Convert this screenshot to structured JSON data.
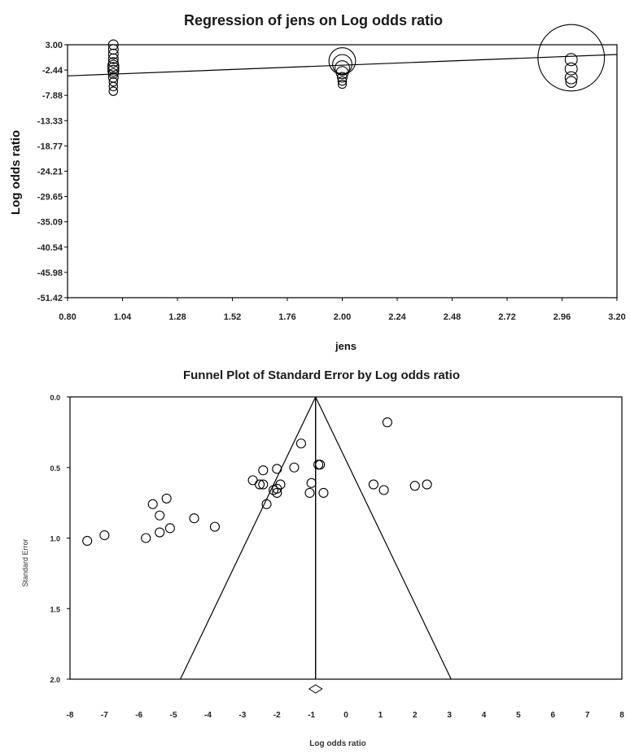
{
  "chart_data": [
    {
      "type": "scatter",
      "title": "Regression of jens on Log odds ratio",
      "xlabel": "jens",
      "ylabel": "Log odds ratio",
      "xlim": [
        0.8,
        3.2
      ],
      "ylim": [
        -51.42,
        3.0
      ],
      "x_ticks": [
        "0.80",
        "1.04",
        "1.28",
        "1.52",
        "1.76",
        "2.00",
        "2.24",
        "2.48",
        "2.72",
        "2.96",
        "3.20"
      ],
      "y_ticks": [
        "3.00",
        "-2.44",
        "-7.88",
        "-13.33",
        "-18.77",
        "-24.21",
        "-29.65",
        "-35.09",
        "-40.54",
        "-45.98",
        "-51.42"
      ],
      "regression_line": {
        "x": [
          0.8,
          3.2
        ],
        "y": [
          -3.7,
          0.9
        ]
      },
      "points": [
        {
          "x": 1.0,
          "y": 3.0,
          "r": 0.8
        },
        {
          "x": 1.0,
          "y": 2.0,
          "r": 0.8
        },
        {
          "x": 1.0,
          "y": 1.0,
          "r": 0.8
        },
        {
          "x": 1.0,
          "y": 0.0,
          "r": 0.8
        },
        {
          "x": 1.0,
          "y": -0.8,
          "r": 0.8
        },
        {
          "x": 1.0,
          "y": -1.5,
          "r": 0.9
        },
        {
          "x": 1.0,
          "y": -2.0,
          "r": 0.9
        },
        {
          "x": 1.0,
          "y": -2.6,
          "r": 0.9
        },
        {
          "x": 1.0,
          "y": -3.2,
          "r": 0.8
        },
        {
          "x": 1.0,
          "y": -4.0,
          "r": 0.8
        },
        {
          "x": 1.0,
          "y": -5.0,
          "r": 0.7
        },
        {
          "x": 1.0,
          "y": -6.0,
          "r": 0.7
        },
        {
          "x": 1.0,
          "y": -7.0,
          "r": 0.7
        },
        {
          "x": 2.0,
          "y": -0.5,
          "r": 2.2
        },
        {
          "x": 2.0,
          "y": -1.2,
          "r": 1.6
        },
        {
          "x": 2.0,
          "y": -2.0,
          "r": 1.2
        },
        {
          "x": 2.0,
          "y": -3.0,
          "r": 1.0
        },
        {
          "x": 2.0,
          "y": -4.0,
          "r": 0.8
        },
        {
          "x": 2.0,
          "y": -4.8,
          "r": 0.7
        },
        {
          "x": 2.0,
          "y": -5.5,
          "r": 0.6
        },
        {
          "x": 3.0,
          "y": 0.2,
          "r": 5.5
        },
        {
          "x": 3.0,
          "y": -0.2,
          "r": 1.0
        },
        {
          "x": 3.0,
          "y": -2.2,
          "r": 1.0
        },
        {
          "x": 3.0,
          "y": -4.1,
          "r": 1.0
        },
        {
          "x": 3.0,
          "y": -5.0,
          "r": 0.9
        }
      ]
    },
    {
      "type": "scatter",
      "title": "Funnel Plot of Standard Error by Log odds ratio",
      "xlabel": "Log odds ratio",
      "ylabel": "Standard Error",
      "xlim": [
        -8,
        8
      ],
      "ylim": [
        0.0,
        2.0
      ],
      "y_inverted": true,
      "x_ticks": [
        "-8",
        "-7",
        "-6",
        "-5",
        "-4",
        "-3",
        "-2",
        "-1",
        "0",
        "1",
        "2",
        "3",
        "4",
        "5",
        "6",
        "7",
        "8"
      ],
      "y_ticks": [
        "0.0",
        "0.5",
        "1.0",
        "1.5",
        "2.0"
      ],
      "summary_effect": -0.88,
      "funnel_bottom": [
        -4.8,
        3.05
      ],
      "points": [
        {
          "x": 1.2,
          "y": 0.18
        },
        {
          "x": -1.3,
          "y": 0.33
        },
        {
          "x": -0.8,
          "y": 0.48
        },
        {
          "x": -0.75,
          "y": 0.48
        },
        {
          "x": -1.5,
          "y": 0.5
        },
        {
          "x": -2.0,
          "y": 0.51
        },
        {
          "x": -2.4,
          "y": 0.52
        },
        {
          "x": -2.7,
          "y": 0.59
        },
        {
          "x": -2.5,
          "y": 0.62
        },
        {
          "x": -2.4,
          "y": 0.62
        },
        {
          "x": -1.9,
          "y": 0.62
        },
        {
          "x": -2.0,
          "y": 0.65
        },
        {
          "x": -2.1,
          "y": 0.66
        },
        {
          "x": -2.0,
          "y": 0.68
        },
        {
          "x": -2.3,
          "y": 0.76
        },
        {
          "x": -1.0,
          "y": 0.61
        },
        {
          "x": -1.05,
          "y": 0.68
        },
        {
          "x": -0.65,
          "y": 0.68
        },
        {
          "x": 0.8,
          "y": 0.62
        },
        {
          "x": 1.1,
          "y": 0.66
        },
        {
          "x": 2.0,
          "y": 0.63
        },
        {
          "x": 2.35,
          "y": 0.62
        },
        {
          "x": -5.2,
          "y": 0.72
        },
        {
          "x": -5.6,
          "y": 0.76
        },
        {
          "x": -5.4,
          "y": 0.84
        },
        {
          "x": -4.4,
          "y": 0.86
        },
        {
          "x": -3.8,
          "y": 0.92
        },
        {
          "x": -5.1,
          "y": 0.93
        },
        {
          "x": -5.4,
          "y": 0.96
        },
        {
          "x": -5.8,
          "y": 1.0
        },
        {
          "x": -7.0,
          "y": 0.98
        },
        {
          "x": -7.5,
          "y": 1.02
        }
      ]
    }
  ]
}
